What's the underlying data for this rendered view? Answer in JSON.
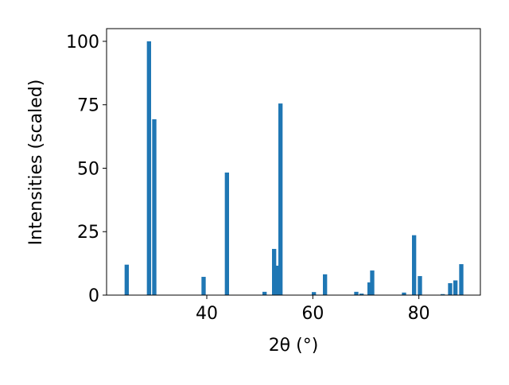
{
  "chart_data": {
    "type": "bar",
    "x": [
      24.9,
      29.1,
      30.1,
      39.4,
      43.8,
      50.9,
      52.7,
      53.2,
      53.9,
      60.2,
      62.3,
      68.2,
      69.2,
      70.7,
      71.2,
      77.2,
      79.1,
      80.2,
      84.5,
      85.9,
      86.9,
      88.0
    ],
    "values": [
      12,
      100,
      69.3,
      7.2,
      48.3,
      1.3,
      18.2,
      11.6,
      75.5,
      1.2,
      8.2,
      1.3,
      0.6,
      5,
      9.7,
      1,
      23.6,
      7.5,
      0.4,
      4.7,
      5.8,
      12.2
    ],
    "color": "#1f77b4",
    "xlabel": "2θ (°)",
    "ylabel": "Intensities (scaled)",
    "xlim": [
      21.1,
      91.6
    ],
    "ylim": [
      0,
      105
    ],
    "xticks": [
      40,
      60,
      80
    ],
    "yticks": [
      0,
      25,
      50,
      75,
      100
    ]
  }
}
